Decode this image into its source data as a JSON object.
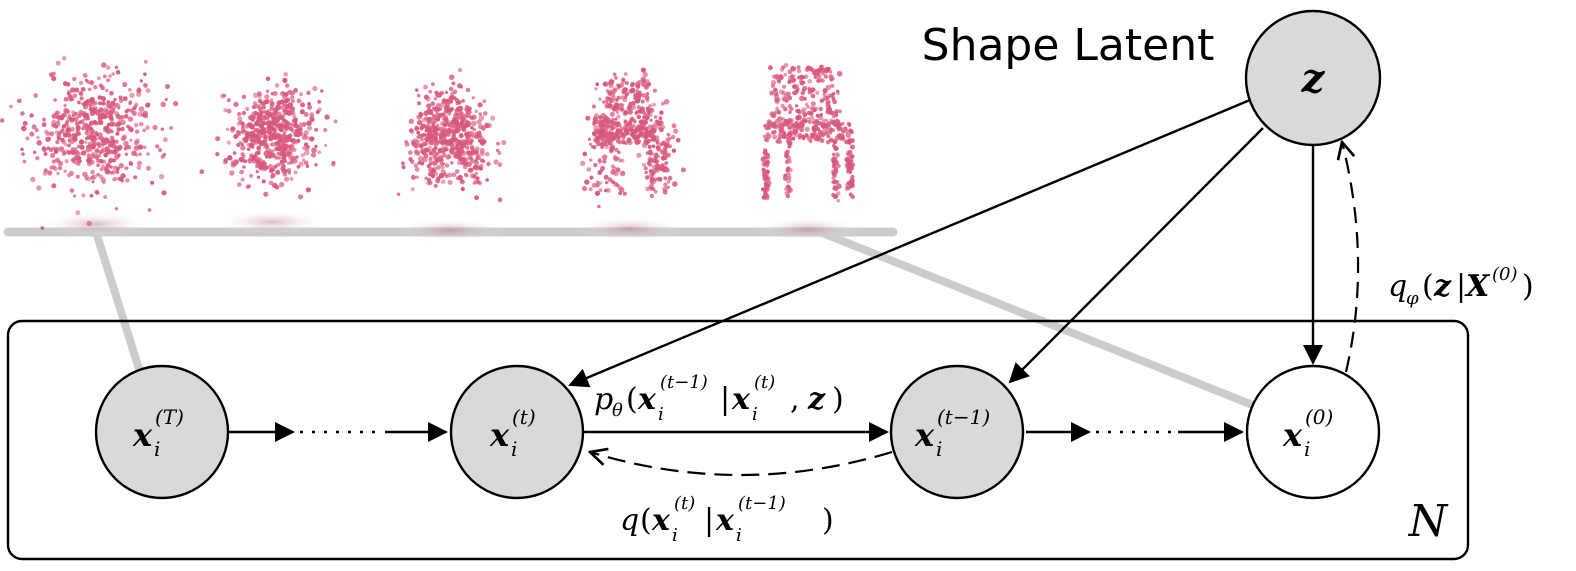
{
  "title": "Shape Latent",
  "plate_label": "N",
  "colors": {
    "latent_fill": "#d9d9d9",
    "observed_fill": "#ffffff",
    "stroke": "#000000",
    "connector": "#cccccc",
    "point_cloud": "#d9587e"
  },
  "nodes": {
    "z": {
      "symbol": "z"
    },
    "xT": {
      "base": "x",
      "sub": "i",
      "sup": "(T)"
    },
    "xt": {
      "base": "x",
      "sub": "i",
      "sup": "(t)"
    },
    "xtm1": {
      "base": "x",
      "sub": "i",
      "sup": "(t−1)"
    },
    "x0": {
      "base": "x",
      "sub": "i",
      "sup": "(0)"
    }
  },
  "labels": {
    "reverse": {
      "p": "p",
      "theta": "θ",
      "open": "(",
      "x1": "x",
      "i1": "i",
      "sup1": "(t−1)",
      "bar": "|",
      "x2": "x",
      "i2": "i",
      "sup2": "(t)",
      "comma": ",",
      "z": "z",
      "close": ")"
    },
    "forward": {
      "q": "q",
      "open": "(",
      "x1": "x",
      "i1": "i",
      "sup1": "(t)",
      "bar": "|",
      "x2": "x",
      "i2": "i",
      "sup2": "(t−1)",
      "close": ")"
    },
    "encoder": {
      "q": "q",
      "phi": "φ",
      "open": "(",
      "z": "z",
      "bar": "|",
      "X": "X",
      "sup": "(0)",
      "close": ")"
    }
  },
  "shapes": [
    {
      "name": "noise-cloud"
    },
    {
      "name": "partially-denoised-cloud"
    },
    {
      "name": "rough-chair-cloud"
    },
    {
      "name": "refined-chair-cloud"
    },
    {
      "name": "clean-chair-cloud"
    }
  ]
}
